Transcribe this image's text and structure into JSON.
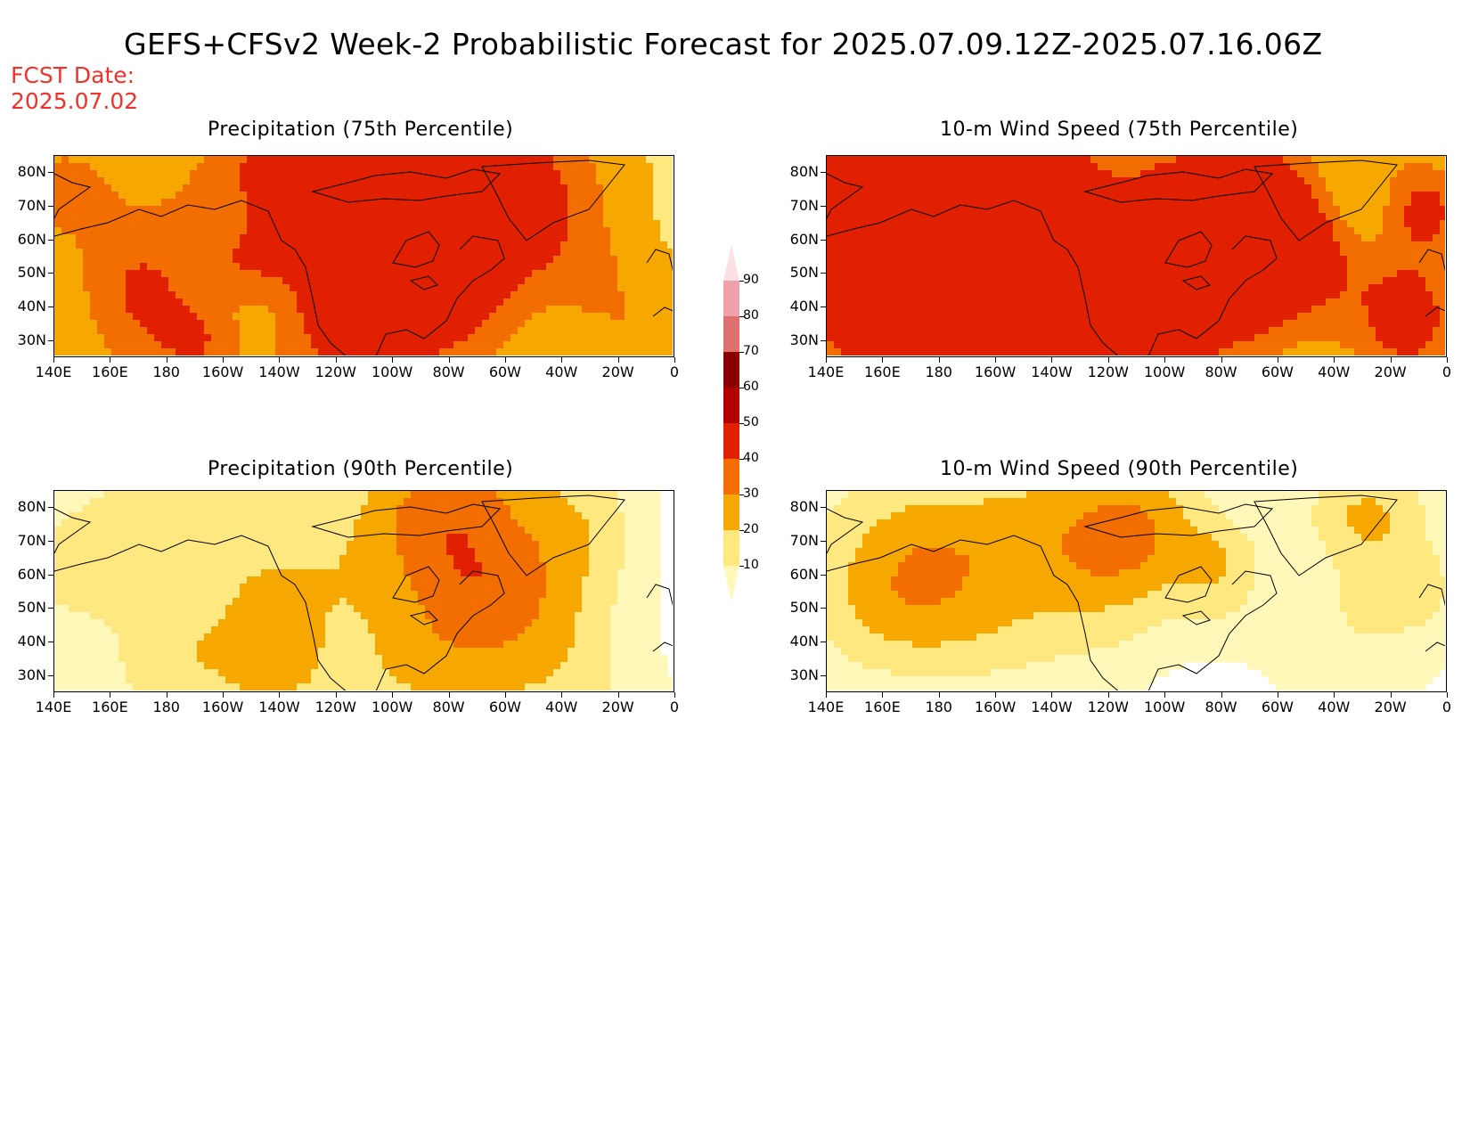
{
  "title": "GEFS+CFSv2 Week-2 Probabilistic Forecast for 2025.07.09.12Z-2025.07.16.06Z",
  "fcst_date": {
    "line1": "FCST Date:",
    "line2": "2025.07.02"
  },
  "panels": [
    {
      "id": "precip-75",
      "title": "Precipitation (75th Percentile)",
      "palette": "high"
    },
    {
      "id": "wind-75",
      "title": "10-m Wind Speed (75th Percentile)",
      "palette": "high"
    },
    {
      "id": "precip-90",
      "title": "Precipitation (90th Percentile)",
      "palette": "low"
    },
    {
      "id": "wind-90",
      "title": "10-m Wind Speed (90th Percentile)",
      "palette": "low"
    }
  ],
  "lat_labels": [
    "80N",
    "70N",
    "60N",
    "50N",
    "40N",
    "30N"
  ],
  "lon_labels": [
    "140E",
    "160E",
    "180",
    "160W",
    "140W",
    "120W",
    "100W",
    "80W",
    "60W",
    "40W",
    "20W",
    "0"
  ],
  "colorbar": {
    "levels": [
      "10",
      "20",
      "30",
      "40",
      "50",
      "60",
      "70",
      "80",
      "90"
    ],
    "colors": [
      "#fff8b8",
      "#ffe880",
      "#f7a800",
      "#f26e00",
      "#e02000",
      "#b00000",
      "#8a0000",
      "#e07070",
      "#f0a0a8",
      "#fbe0e4"
    ]
  }
}
